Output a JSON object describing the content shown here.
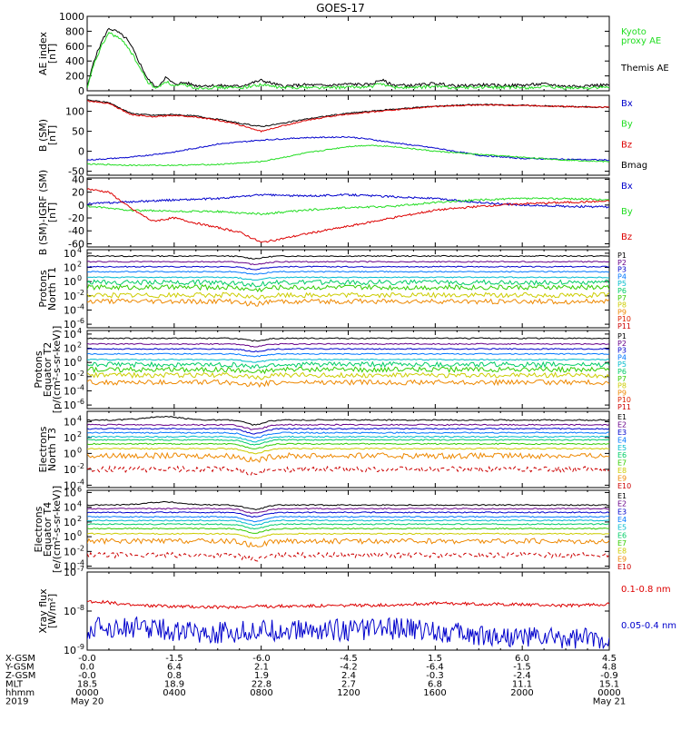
{
  "title": "GOES-17",
  "chart_data": [
    {
      "type": "line",
      "panel": "ae",
      "ylabel": [
        "AE index",
        "[nT]"
      ],
      "yticks": [
        "1000",
        "800",
        "600",
        "400",
        "200",
        "0"
      ],
      "ylim": [
        0,
        1000
      ],
      "legend": [
        {
          "text": "Kyoto",
          "color": "#22dd22"
        },
        {
          "text": "proxy AE",
          "color": "#22dd22"
        },
        {
          "text": "Themis AE",
          "color": "#000000"
        }
      ],
      "series": [
        {
          "name": "Themis AE",
          "color": "#000000",
          "x": [
            0,
            0.3,
            0.7,
            1.0,
            1.4,
            1.8,
            2.1,
            2.4,
            2.8,
            3.2,
            3.6,
            4.0,
            4.5,
            5,
            6,
            7,
            8,
            9,
            10,
            11,
            12,
            13,
            13.5,
            14,
            15,
            16,
            17,
            18,
            19,
            20,
            21,
            22,
            23,
            24
          ],
          "values": [
            30,
            400,
            680,
            840,
            790,
            700,
            560,
            380,
            150,
            40,
            180,
            90,
            110,
            70,
            70,
            60,
            140,
            60,
            80,
            70,
            90,
            80,
            150,
            80,
            70,
            100,
            60,
            80,
            70,
            75,
            90,
            60,
            70,
            80
          ]
        },
        {
          "name": "Kyoto proxy AE",
          "color": "#22dd22",
          "x": [
            0,
            0.3,
            0.7,
            1.0,
            1.4,
            1.8,
            2.1,
            2.4,
            2.8,
            3.2,
            3.6,
            4.0,
            4.5,
            5,
            6,
            7,
            8,
            9,
            10,
            11,
            12,
            13,
            13.5,
            14,
            15,
            16,
            17,
            18,
            19,
            20,
            21,
            22,
            23,
            24
          ],
          "values": [
            20,
            350,
            620,
            780,
            720,
            620,
            480,
            320,
            110,
            30,
            130,
            60,
            80,
            40,
            45,
            40,
            80,
            40,
            50,
            40,
            50,
            50,
            100,
            50,
            40,
            60,
            40,
            50,
            45,
            40,
            50,
            35,
            40,
            45
          ]
        }
      ]
    },
    {
      "type": "line",
      "panel": "bsm",
      "ylabel": [
        "B (SM)",
        "[nT]"
      ],
      "yticks": [
        "100",
        "50",
        "0",
        "-50"
      ],
      "ylim": [
        -60,
        140
      ],
      "legend": [
        {
          "text": "Bx",
          "color": "#0000cc"
        },
        {
          "text": "By",
          "color": "#22dd22"
        },
        {
          "text": "Bz",
          "color": "#dd0000"
        },
        {
          "text": "Bmag",
          "color": "#000000"
        }
      ],
      "series": [
        {
          "name": "Bmag",
          "color": "#000000",
          "x": [
            0,
            1,
            2,
            3,
            4,
            5,
            6,
            7,
            8,
            9,
            10,
            11,
            12,
            14,
            16,
            18,
            20,
            22,
            24
          ],
          "values": [
            128,
            122,
            95,
            90,
            92,
            88,
            80,
            70,
            62,
            70,
            80,
            88,
            95,
            105,
            113,
            117,
            115,
            112,
            110
          ]
        },
        {
          "name": "Bz",
          "color": "#dd0000",
          "x": [
            0,
            1,
            2,
            3,
            4,
            5,
            6,
            7,
            8,
            9,
            10,
            11,
            12,
            14,
            16,
            18,
            20,
            22,
            24
          ],
          "values": [
            126,
            120,
            92,
            86,
            90,
            86,
            78,
            66,
            50,
            64,
            76,
            86,
            93,
            103,
            112,
            116,
            115,
            112,
            110
          ]
        },
        {
          "name": "Bx",
          "color": "#0000cc",
          "x": [
            0,
            2,
            4,
            6,
            8,
            10,
            12,
            13,
            14,
            16,
            18,
            20,
            22,
            24
          ],
          "values": [
            -22,
            -15,
            -2,
            18,
            28,
            34,
            36,
            30,
            22,
            8,
            -10,
            -18,
            -20,
            -22
          ]
        },
        {
          "name": "By",
          "color": "#22dd22",
          "x": [
            0,
            2,
            4,
            6,
            8,
            10,
            12,
            13,
            14,
            16,
            18,
            20,
            22,
            24
          ],
          "values": [
            -32,
            -35,
            -35,
            -33,
            -26,
            -5,
            12,
            15,
            12,
            0,
            -8,
            -15,
            -22,
            -26
          ]
        }
      ]
    },
    {
      "type": "line",
      "panel": "bigrf",
      "ylabel": [
        "B (SM)-IGRF (SM)",
        "[nT]"
      ],
      "yticks": [
        "40",
        "20",
        "0",
        "-20",
        "-40",
        "-60"
      ],
      "ylim": [
        -65,
        42
      ],
      "legend": [
        {
          "text": "Bx",
          "color": "#0000cc"
        },
        {
          "text": "By",
          "color": "#22dd22"
        },
        {
          "text": "Bz",
          "color": "#dd0000"
        }
      ],
      "series": [
        {
          "name": "Bx",
          "color": "#0000cc",
          "x": [
            0,
            2,
            4,
            6,
            8,
            10,
            12,
            14,
            16,
            18,
            20,
            22,
            24
          ],
          "values": [
            2,
            5,
            8,
            10,
            16,
            14,
            16,
            13,
            10,
            4,
            0,
            -2,
            -3
          ]
        },
        {
          "name": "By",
          "color": "#22dd22",
          "x": [
            0,
            2,
            4,
            6,
            8,
            10,
            12,
            14,
            16,
            18,
            20,
            22,
            24
          ],
          "values": [
            -2,
            -8,
            -10,
            -10,
            -14,
            -8,
            -4,
            -2,
            4,
            8,
            10,
            10,
            8
          ]
        },
        {
          "name": "Bz",
          "color": "#dd0000",
          "x": [
            0,
            1,
            2,
            3,
            4,
            5,
            6,
            7,
            8,
            9,
            10,
            12,
            14,
            16,
            18,
            20,
            22,
            24
          ],
          "values": [
            25,
            20,
            -5,
            -25,
            -20,
            -28,
            -35,
            -42,
            -58,
            -52,
            -45,
            -33,
            -20,
            -8,
            -2,
            2,
            4,
            6
          ]
        }
      ]
    },
    {
      "type": "line",
      "panel": "pn",
      "log": true,
      "ylabel": [
        "Protons",
        "North T1"
      ],
      "yticks": [
        "10",
        "10",
        "10",
        "10",
        "10",
        "10"
      ],
      "ytick_exp": [
        "4",
        "2",
        "0",
        "-2",
        "-4",
        "-6"
      ],
      "ylim": [
        -6.5,
        4.5
      ],
      "channels": [
        "P1",
        "P2",
        "P3",
        "P4",
        "P5",
        "P6",
        "P7",
        "P8",
        "P9",
        "P10",
        "P11"
      ],
      "channel_colors": [
        "#000000",
        "#660088",
        "#0000cc",
        "#0077ff",
        "#00bbcc",
        "#00cc66",
        "#33cc00",
        "#cccc00",
        "#ee8800",
        "#dd2200",
        "#cc0000"
      ],
      "levels": [
        3.6,
        2.8,
        2.1,
        1.4,
        0.6,
        -0.1,
        -0.8,
        -1.9,
        -2.8,
        -9,
        -9
      ]
    },
    {
      "type": "line",
      "panel": "pe",
      "log": true,
      "ylabel": [
        "Protons",
        "Equator T2",
        "[p/(cm²-s-sr-keV)]"
      ],
      "yticks": [
        "10",
        "10",
        "10",
        "10",
        "10",
        "10"
      ],
      "ytick_exp": [
        "4",
        "2",
        "0",
        "-2",
        "-4",
        "-6"
      ],
      "ylim": [
        -6.5,
        4.5
      ],
      "channels": [
        "P1",
        "P2",
        "P3",
        "P4",
        "P5",
        "P6",
        "P7",
        "P8",
        "P9",
        "P10",
        "P11"
      ],
      "channel_colors": [
        "#000000",
        "#660088",
        "#0000cc",
        "#0077ff",
        "#00bbcc",
        "#00cc66",
        "#33cc00",
        "#cccc00",
        "#ee8800",
        "#dd2200",
        "#cc0000"
      ],
      "levels": [
        3.4,
        2.6,
        1.9,
        1.2,
        0.4,
        -0.3,
        -1.0,
        -1.8,
        -2.8,
        -9,
        -9
      ]
    },
    {
      "type": "line",
      "panel": "en",
      "log": true,
      "ylabel": [
        "Electrons",
        "North T3"
      ],
      "yticks": [
        "10",
        "10",
        "10",
        "10",
        "10",
        "10"
      ],
      "ytick_exp": [
        "4",
        "2",
        "0",
        "-2",
        "-4",
        "-6"
      ],
      "ylim": [
        -4.3,
        5.3
      ],
      "channels": [
        "E1",
        "E2",
        "E3",
        "E4",
        "E5",
        "E6",
        "E7",
        "E8",
        "E9",
        "E10"
      ],
      "channel_colors": [
        "#000000",
        "#660088",
        "#0000cc",
        "#0077ff",
        "#00bbcc",
        "#00cc66",
        "#33cc00",
        "#cccc00",
        "#ee8800",
        "#cc0000"
      ],
      "levels": [
        4.2,
        3.6,
        3.1,
        2.6,
        2.1,
        1.7,
        1.2,
        0.6,
        -0.3,
        -2.0
      ]
    },
    {
      "type": "line",
      "panel": "ee",
      "log": true,
      "ylabel": [
        "Electrons",
        "Equator T4",
        "[e/(cm²-s-sr-keV)]"
      ],
      "yticks": [
        "10",
        "10",
        "10",
        "10",
        "10",
        "10"
      ],
      "ytick_exp": [
        "6",
        "4",
        "2",
        "0",
        "-2",
        "-4"
      ],
      "ylim": [
        -4.3,
        6.3
      ],
      "channels": [
        "E1",
        "E2",
        "E3",
        "E4",
        "E5",
        "E6",
        "E7",
        "E8",
        "E9",
        "E10"
      ],
      "channel_colors": [
        "#000000",
        "#660088",
        "#0000cc",
        "#0077ff",
        "#00bbcc",
        "#00cc66",
        "#33cc00",
        "#cccc00",
        "#ee8800",
        "#cc0000"
      ],
      "levels": [
        4.3,
        3.8,
        3.3,
        2.7,
        2.2,
        1.7,
        1.1,
        0.4,
        -0.6,
        -2.5
      ]
    },
    {
      "type": "line",
      "panel": "xray",
      "log": true,
      "ylabel": [
        "Xray flux",
        "[W/m²]"
      ],
      "yticks": [
        "10",
        "10",
        "10"
      ],
      "ytick_exp": [
        "-7",
        "-8",
        "-9"
      ],
      "ylim": [
        -9,
        -7
      ],
      "legend": [
        {
          "text": "0.1-0.8 nm",
          "color": "#dd0000"
        },
        {
          "text": "0.05-0.4 nm",
          "color": "#0000cc"
        }
      ],
      "series": [
        {
          "name": "0.1-0.8 nm",
          "color": "#dd0000",
          "x": [
            0,
            1,
            2,
            4,
            6,
            8,
            10,
            12,
            14,
            16,
            18,
            20,
            22,
            24
          ],
          "values": [
            -7.75,
            -7.78,
            -7.85,
            -7.88,
            -7.9,
            -7.88,
            -7.87,
            -7.86,
            -7.84,
            -7.8,
            -7.82,
            -7.83,
            -7.86,
            -7.82
          ]
        },
        {
          "name": "0.05-0.4 nm",
          "color": "#0000cc",
          "x": [
            0,
            2,
            4,
            6,
            8,
            10,
            12,
            14,
            16,
            18,
            20,
            22,
            24
          ],
          "values": [
            -8.45,
            -8.4,
            -8.5,
            -8.55,
            -8.5,
            -8.5,
            -8.48,
            -8.45,
            -8.5,
            -8.6,
            -8.65,
            -8.7,
            -8.68
          ]
        }
      ]
    }
  ],
  "footer": {
    "rows": [
      {
        "label": "X-GSM",
        "values": [
          "-0.0",
          "-1.5",
          "-6.0",
          "-4.5",
          "1.5",
          "6.0",
          "4.5"
        ]
      },
      {
        "label": "Y-GSM",
        "values": [
          "0.0",
          "6.4",
          "2.1",
          "-4.2",
          "-6.4",
          "-1.5",
          "4.8"
        ]
      },
      {
        "label": "Z-GSM",
        "values": [
          "-0.0",
          "0.8",
          "1.9",
          "2.4",
          "-0.3",
          "-2.4",
          "-0.9"
        ]
      },
      {
        "label": "MLT",
        "values": [
          "18.5",
          "18.9",
          "22.8",
          "2.7",
          "6.8",
          "11.1",
          "15.1"
        ]
      },
      {
        "label": "hhmm",
        "values": [
          "0000",
          "0400",
          "0800",
          "1200",
          "1600",
          "2000",
          "0000"
        ]
      }
    ],
    "year": "2019",
    "start_date": "May 20",
    "end_date": "May 21"
  }
}
